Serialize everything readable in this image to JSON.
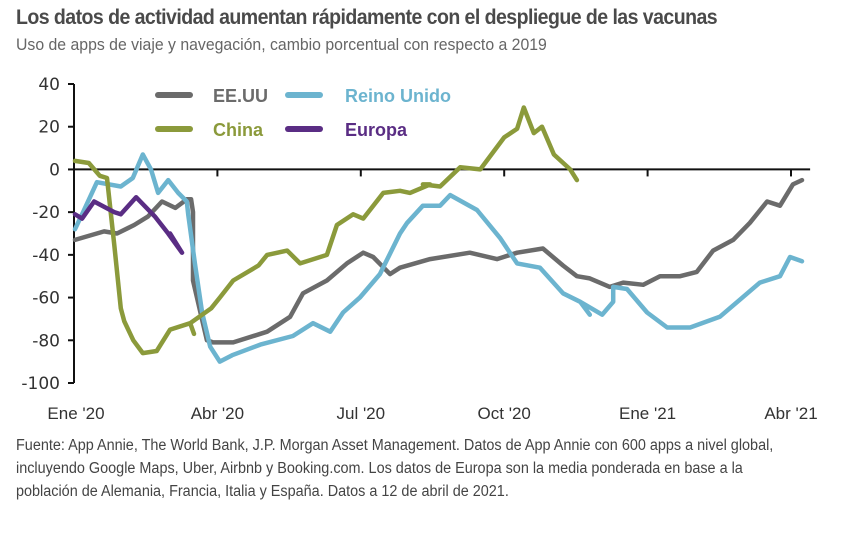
{
  "header": {
    "title": "Los datos de actividad aumentan rápidamente con el despliegue de las vacunas",
    "subtitle": "Uso de apps de viaje y navegación, cambio porcentual con respecto a 2019"
  },
  "footnote": "Fuente: App Annie, The World Bank, J.P. Morgan Asset Management. Datos de App Annie con 600 apps a nivel global, incluyendo Google Maps, Uber, Airbnb y Booking.com. Los datos de Europa son la media ponderada en base a la población de Alemania, Francia, Italia y España. Datos a 12 de abril de 2021.",
  "chart_data": {
    "type": "line",
    "title": "Los datos de actividad aumentan rápidamente con el despliegue de las vacunas",
    "subtitle": "Uso de apps de viaje y navegación, cambio porcentual con respecto a 2019",
    "xlabel": "",
    "ylabel": "",
    "x_unit": "months since Jan 2020",
    "xlim": [
      0,
      15.4
    ],
    "ylim": [
      -100,
      40
    ],
    "yticks": [
      40,
      20,
      0,
      -20,
      -40,
      -60,
      -80,
      -100
    ],
    "xticks": [
      {
        "pos": 0,
        "label": "Ene '20"
      },
      {
        "pos": 3,
        "label": "Abr '20"
      },
      {
        "pos": 6,
        "label": "Jul '20"
      },
      {
        "pos": 9,
        "label": "Oct '20"
      },
      {
        "pos": 12,
        "label": "Ene '21"
      },
      {
        "pos": 15,
        "label": "Abr '21"
      }
    ],
    "grid": false,
    "legend_position": "top-left",
    "series": [
      {
        "name": "EE.UU",
        "color": "#6b6b6b",
        "points": [
          [
            0.02,
            -33
          ],
          [
            0.63,
            -29
          ],
          [
            0.9,
            -30
          ],
          [
            1.26,
            -26
          ],
          [
            1.55,
            -22
          ],
          [
            1.84,
            -15
          ],
          [
            2.12,
            -18
          ],
          [
            2.36,
            -14
          ],
          [
            2.45,
            -14
          ],
          [
            2.49,
            -20
          ],
          [
            2.49,
            -35
          ],
          [
            2.49,
            -52
          ],
          [
            2.78,
            -80
          ],
          [
            2.91,
            -81
          ],
          [
            3.33,
            -81
          ],
          [
            4.04,
            -76
          ],
          [
            4.52,
            -69
          ],
          [
            4.79,
            -58
          ],
          [
            5.29,
            -52
          ],
          [
            5.71,
            -44
          ],
          [
            6.05,
            -39
          ],
          [
            6.26,
            -41
          ],
          [
            6.61,
            -49
          ],
          [
            6.82,
            -46
          ],
          [
            7.45,
            -42
          ],
          [
            8.28,
            -39
          ],
          [
            8.85,
            -42
          ],
          [
            9.27,
            -39
          ],
          [
            9.81,
            -37
          ],
          [
            10.23,
            -45
          ],
          [
            10.52,
            -50
          ],
          [
            10.79,
            -51
          ],
          [
            11.21,
            -55
          ],
          [
            11.49,
            -53
          ],
          [
            11.91,
            -54
          ],
          [
            12.26,
            -50
          ],
          [
            12.68,
            -50
          ],
          [
            13.03,
            -48
          ],
          [
            13.37,
            -38
          ],
          [
            13.79,
            -33
          ],
          [
            14.14,
            -25
          ],
          [
            14.5,
            -15
          ],
          [
            14.77,
            -17
          ],
          [
            15.04,
            -7
          ],
          [
            15.23,
            -5
          ]
        ]
      },
      {
        "name": "Reino Unido",
        "color": "#6cb4cf",
        "points": [
          [
            0.02,
            -28
          ],
          [
            0.19,
            -20
          ],
          [
            0.48,
            -6
          ],
          [
            0.98,
            -8
          ],
          [
            1.23,
            -4
          ],
          [
            1.44,
            7
          ],
          [
            1.61,
            0
          ],
          [
            1.76,
            -11
          ],
          [
            1.97,
            -5
          ],
          [
            2.18,
            -11
          ],
          [
            2.36,
            -15
          ],
          [
            2.39,
            -21
          ],
          [
            2.53,
            -44
          ],
          [
            2.68,
            -67
          ],
          [
            2.85,
            -83
          ],
          [
            3.05,
            -90
          ],
          [
            3.31,
            -87
          ],
          [
            3.9,
            -82
          ],
          [
            4.58,
            -78
          ],
          [
            5.0,
            -72
          ],
          [
            5.36,
            -76
          ],
          [
            5.63,
            -67
          ],
          [
            5.98,
            -60
          ],
          [
            6.4,
            -49
          ],
          [
            6.82,
            -30
          ],
          [
            6.97,
            -25
          ],
          [
            7.3,
            -17
          ],
          [
            7.66,
            -17
          ],
          [
            7.87,
            -12
          ],
          [
            8.43,
            -19
          ],
          [
            8.91,
            -32
          ],
          [
            9.27,
            -44
          ],
          [
            9.75,
            -46
          ],
          [
            10.23,
            -58
          ],
          [
            10.59,
            -62
          ],
          [
            10.79,
            -68
          ],
          [
            10.59,
            -62
          ],
          [
            11.05,
            -68
          ],
          [
            11.28,
            -62
          ],
          [
            11.28,
            -62
          ],
          [
            11.28,
            -55
          ],
          [
            11.57,
            -56
          ],
          [
            11.99,
            -67
          ],
          [
            12.41,
            -74
          ],
          [
            12.89,
            -74
          ],
          [
            13.51,
            -69
          ],
          [
            13.93,
            -61
          ],
          [
            14.35,
            -53
          ],
          [
            14.77,
            -50
          ],
          [
            14.98,
            -41
          ],
          [
            15.23,
            -43
          ]
        ]
      },
      {
        "name": "China",
        "color": "#8b9a3b",
        "points": [
          [
            0.02,
            4
          ],
          [
            0.31,
            3
          ],
          [
            0.54,
            -3
          ],
          [
            0.69,
            -4
          ],
          [
            0.84,
            -35
          ],
          [
            0.98,
            -65
          ],
          [
            1.05,
            -71
          ],
          [
            1.24,
            -80
          ],
          [
            1.44,
            -86
          ],
          [
            1.73,
            -85
          ],
          [
            2.01,
            -75
          ],
          [
            2.43,
            -72
          ],
          [
            2.51,
            -77
          ],
          [
            2.43,
            -72
          ],
          [
            2.87,
            -65
          ],
          [
            3.05,
            -60
          ],
          [
            3.33,
            -52
          ],
          [
            3.86,
            -45
          ],
          [
            4.04,
            -40
          ],
          [
            4.46,
            -38
          ],
          [
            4.73,
            -44
          ],
          [
            5.29,
            -40
          ],
          [
            5.5,
            -26
          ],
          [
            5.84,
            -21
          ],
          [
            6.05,
            -23
          ],
          [
            6.47,
            -11
          ],
          [
            6.82,
            -10
          ],
          [
            7.03,
            -11
          ],
          [
            7.45,
            -7
          ],
          [
            7.3,
            -7
          ],
          [
            7.3,
            -7
          ],
          [
            7.66,
            -8
          ],
          [
            7.66,
            -8
          ],
          [
            8.08,
            1
          ],
          [
            8.5,
            0
          ],
          [
            9.0,
            15
          ],
          [
            9.27,
            19
          ],
          [
            9.41,
            29
          ],
          [
            9.62,
            17
          ],
          [
            9.79,
            20
          ],
          [
            10.04,
            7
          ],
          [
            10.38,
            0
          ],
          [
            10.52,
            -5
          ],
          [
            10.52,
            -5
          ],
          [
            10.52,
            -5
          ],
          [
            10.52,
            -5
          ],
          [
            10.52,
            -5
          ],
          [
            10.52,
            -5
          ],
          [
            10.52,
            -5
          ],
          [
            10.52,
            -5
          ]
        ]
      },
      {
        "name": "Europa",
        "color": "#5a2d84",
        "points": [
          [
            0.02,
            -21
          ],
          [
            0.17,
            -23
          ],
          [
            0.42,
            -15
          ],
          [
            0.84,
            -20
          ],
          [
            0.98,
            -21
          ],
          [
            1.3,
            -13
          ],
          [
            1.69,
            -22
          ],
          [
            1.97,
            -30
          ],
          [
            2.26,
            -39
          ],
          [
            2.01,
            -30
          ],
          [
            2.01,
            -30
          ],
          [
            2.01,
            -30
          ]
        ]
      }
    ]
  }
}
